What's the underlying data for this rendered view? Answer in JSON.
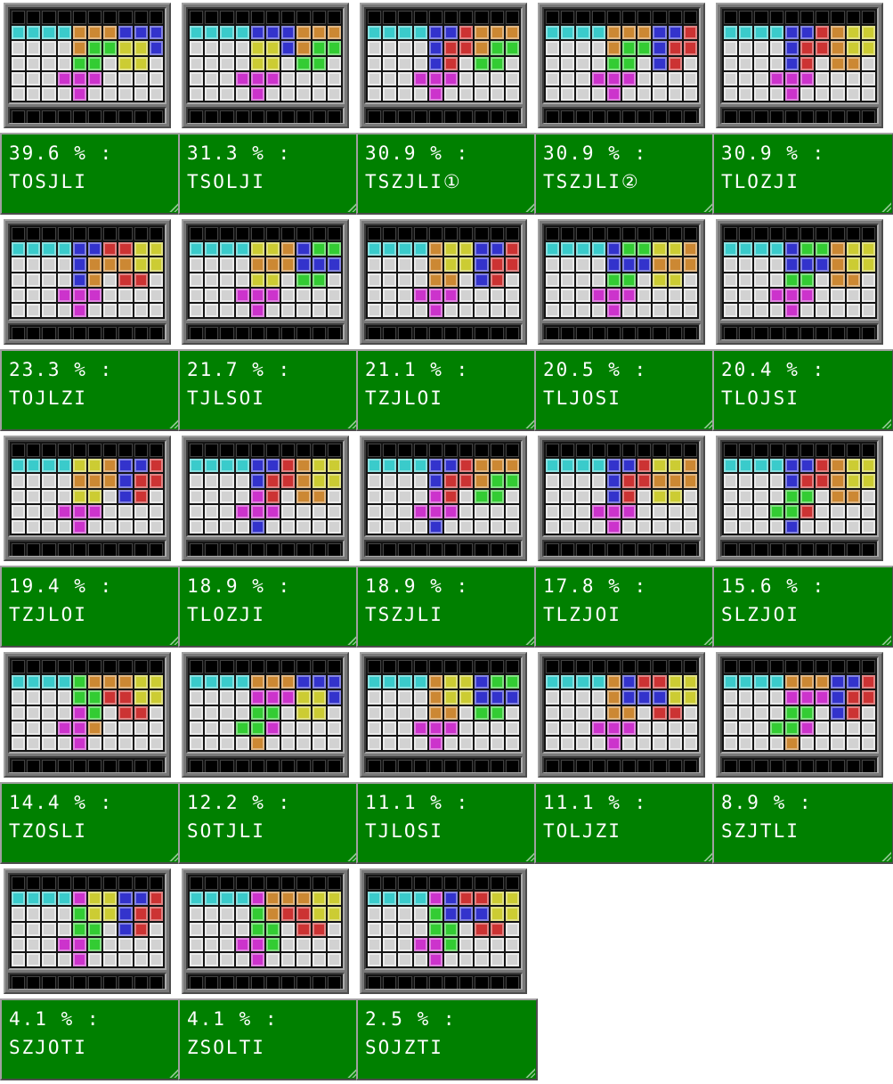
{
  "page": {
    "background": "#ffffff"
  },
  "board": {
    "columns": 10,
    "visible_rows": 5,
    "hidden_row": "XXXXXXXXXX"
  },
  "colors": {
    "I": "#3ACBCB",
    "O": "#CCCC33",
    "T": "#CC33CC",
    "S": "#33CC33",
    "Z": "#CC3333",
    "J": "#3333CC",
    "L": "#CC8833",
    "empty": "#D2D2D2",
    "hidden": "#000000",
    "label_bg": "#008000",
    "label_text": "#FFFFFF"
  },
  "tiles": [
    {
      "percent_line": "39.6 % :",
      "label": "TOSJLI",
      "rows": [
        "IIIILLLJJJ",
        "....LSSOOJ",
        "....SS.OO.",
        "...TTT....",
        "....T....."
      ]
    },
    {
      "percent_line": "31.3 % :",
      "label": "TSOLJI",
      "rows": [
        "IIIIJJJLLL",
        "....OOJLSS",
        "....OO.SS.",
        "...TTT....",
        "....T....."
      ]
    },
    {
      "percent_line": "30.9 % :",
      "label": "TSZJLI①",
      "rows": [
        "IIIIJJZLLL",
        "....JZZLSS",
        "....JZ.SS.",
        "...TTT....",
        "....T....."
      ]
    },
    {
      "percent_line": "30.9 % :",
      "label": "TSZJLI②",
      "rows": [
        "IIIILLLJJZ",
        "....LSSJZZ",
        "....SS.JZ.",
        "...TTT....",
        "....T....."
      ]
    },
    {
      "percent_line": "30.9 % :",
      "label": "TLOZJI",
      "rows": [
        "IIIIJJZLOO",
        "....JZZLOO",
        "....JZ.LL.",
        "...TTT....",
        "....T....."
      ]
    },
    {
      "percent_line": "23.3 % :",
      "label": "TOJLZI",
      "rows": [
        "IIIIJJZZOO",
        "....JLLLOO",
        "....JL.ZZ.",
        "...TTT....",
        "....T....."
      ]
    },
    {
      "percent_line": "21.7 % :",
      "label": "TJLSOI",
      "rows": [
        "IIIIOOLJSS",
        "....LLLJJJ",
        "....OO.SS.",
        "...TTT....",
        "....T....."
      ]
    },
    {
      "percent_line": "21.1 % :",
      "label": "TZJLOI",
      "rows": [
        "IIIILOOJJZ",
        "....LOOJZZ",
        "....LL.JZ.",
        "...TTT....",
        "....T....."
      ]
    },
    {
      "percent_line": "20.5 % :",
      "label": "TLJOSI",
      "rows": [
        "IIIIJSSOOL",
        "....JJJLLL",
        "....SS.OO.",
        "...TTT....",
        "....T....."
      ]
    },
    {
      "percent_line": "20.4 % :",
      "label": "TLOJSI",
      "rows": [
        "IIIIJSSLOO",
        "....JJJLOO",
        "....SS.LL.",
        "...TTT....",
        "....T....."
      ]
    },
    {
      "percent_line": "19.4 % :",
      "label": "TZJLOI",
      "rows": [
        "IIIIOOLJJZ",
        "....LLLJZZ",
        "....OO.JZ.",
        "...TTT....",
        "....T....."
      ]
    },
    {
      "percent_line": "18.9 % :",
      "label": "TLOZJI",
      "rows": [
        "IIIIJJZLOO",
        "....JZZLOO",
        "....TZ.LL.",
        "...TTT....",
        "....J....."
      ]
    },
    {
      "percent_line": "18.9 % :",
      "label": "TSZJLI",
      "rows": [
        "IIIIJJZLLL",
        "....JZZLSS",
        "....TZ.SS.",
        "...TTT....",
        "....J....."
      ]
    },
    {
      "percent_line": "17.8 % :",
      "label": "TLZJOI",
      "rows": [
        "IIIIJJZOOL",
        "....JZZLLL",
        "....JZ.OO.",
        "...TTT....",
        "....T....."
      ]
    },
    {
      "percent_line": "15.6 % :",
      "label": "SLZJOI",
      "rows": [
        "IIIIJJZLOO",
        "....JZZLOO",
        "....SS.LL.",
        "...SSZ....",
        "....J....."
      ]
    },
    {
      "percent_line": "14.4 % :",
      "label": "TZOSLI",
      "rows": [
        "IIIISLLLOO",
        "....SSZZOO",
        "....TS.ZZ.",
        "...TTL....",
        "....T....."
      ]
    },
    {
      "percent_line": "12.2 % :",
      "label": "SOTJLI",
      "rows": [
        "IIIILLLJJJ",
        "....TTTOOJ",
        "....SS.OO.",
        "...SST....",
        "....L....."
      ]
    },
    {
      "percent_line": "11.1 % :",
      "label": "TJLOSI",
      "rows": [
        "IIIILOOJSS",
        "....LOOJJJ",
        "....LL.SS.",
        "...TTT....",
        "....T....."
      ]
    },
    {
      "percent_line": "11.1 % :",
      "label": "TOLJZI",
      "rows": [
        "IIIILJZZOO",
        "....LJJJOO",
        "....LL.ZZ.",
        "...TTT....",
        "....T....."
      ]
    },
    {
      "percent_line": "8.9 % :",
      "label": "SZJTLI",
      "rows": [
        "IIIILLLJJZ",
        "....TTTJZZ",
        "....SS.JZ.",
        "...SST....",
        "....L....."
      ]
    },
    {
      "percent_line": "4.1 % :",
      "label": "SZJOTI",
      "rows": [
        "IIIITOOJJZ",
        "....SOOJZZ",
        "....SS.JZ.",
        "...TTS....",
        "....T....."
      ]
    },
    {
      "percent_line": "4.1 % :",
      "label": "ZSOLTI",
      "rows": [
        "IIIITLLLOO",
        "....SLZZOO",
        "....SS.ZZ.",
        "...TTS....",
        "....T....."
      ]
    },
    {
      "percent_line": "2.5 % :",
      "label": "SOJZTI",
      "rows": [
        "IIIITJZZOO",
        "....SJJJOO",
        "....SS.ZZ.",
        "...TTS....",
        "....T....."
      ]
    }
  ]
}
